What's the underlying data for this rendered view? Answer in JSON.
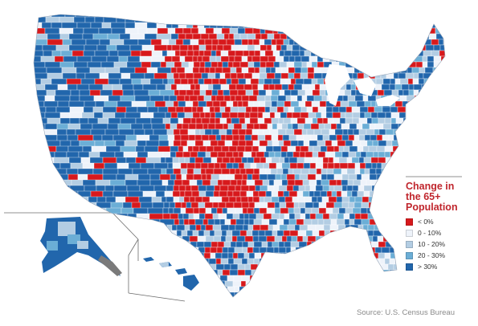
{
  "map": {
    "colors": {
      "decline": "#d7191c",
      "low": "#eef3fa",
      "mid": "#b3cde3",
      "high": "#6baed6",
      "very_high": "#2166ac",
      "border": "#ffffff",
      "outline": "#6b6b6b"
    },
    "regions": [
      "contiguous-us",
      "alaska",
      "hawaii"
    ]
  },
  "legend": {
    "title_lines": [
      "Change in",
      "the 65+",
      "Population"
    ],
    "items": [
      {
        "label": "< 0%",
        "color": "#d7191c"
      },
      {
        "label": "0 - 10%",
        "color": "#eef3fa"
      },
      {
        "label": "10 - 20%",
        "color": "#b3cde3"
      },
      {
        "label": "20 - 30%",
        "color": "#6baed6"
      },
      {
        "label": "> 30%",
        "color": "#2166ac"
      }
    ]
  },
  "source": "Source: U.S. Census Bureau"
}
